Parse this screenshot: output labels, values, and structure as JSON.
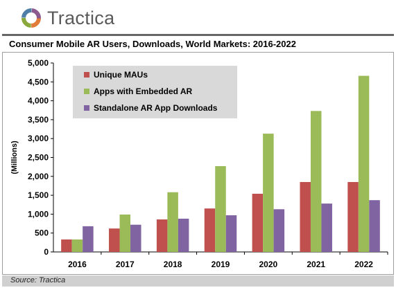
{
  "header": {
    "logo_text": "Tractica",
    "logo_icon": "tractica-ring-logo"
  },
  "source": "Source: Tractica",
  "colors": {
    "unique_maus": "#c0504d",
    "apps_embedded": "#9bbb59",
    "standalone": "#8064a2",
    "legend_bg": "#d9d9d9",
    "rule": "#666666"
  },
  "chart_data": {
    "type": "bar",
    "title": "Consumer Mobile AR Users, Downloads, World Markets: 2016-2022",
    "ylabel": "(Millions)",
    "xlabel": "",
    "categories": [
      "2016",
      "2017",
      "2018",
      "2019",
      "2020",
      "2021",
      "2022"
    ],
    "ylim": [
      0,
      5000
    ],
    "yticks": [
      "0",
      "500",
      "1,000",
      "1,500",
      "2,000",
      "2,500",
      "3,000",
      "3,500",
      "4,000",
      "4,500",
      "5,000"
    ],
    "grid": false,
    "legend_position": "top-left",
    "series": [
      {
        "name": "Unique MAUs",
        "values": [
          330,
          620,
          860,
          1150,
          1540,
          1850,
          1850
        ]
      },
      {
        "name": "Apps with Embedded AR",
        "values": [
          330,
          990,
          1580,
          2270,
          3130,
          3730,
          4660
        ]
      },
      {
        "name": "Standalone AR App Downloads",
        "values": [
          680,
          720,
          880,
          970,
          1130,
          1280,
          1370
        ]
      }
    ]
  }
}
